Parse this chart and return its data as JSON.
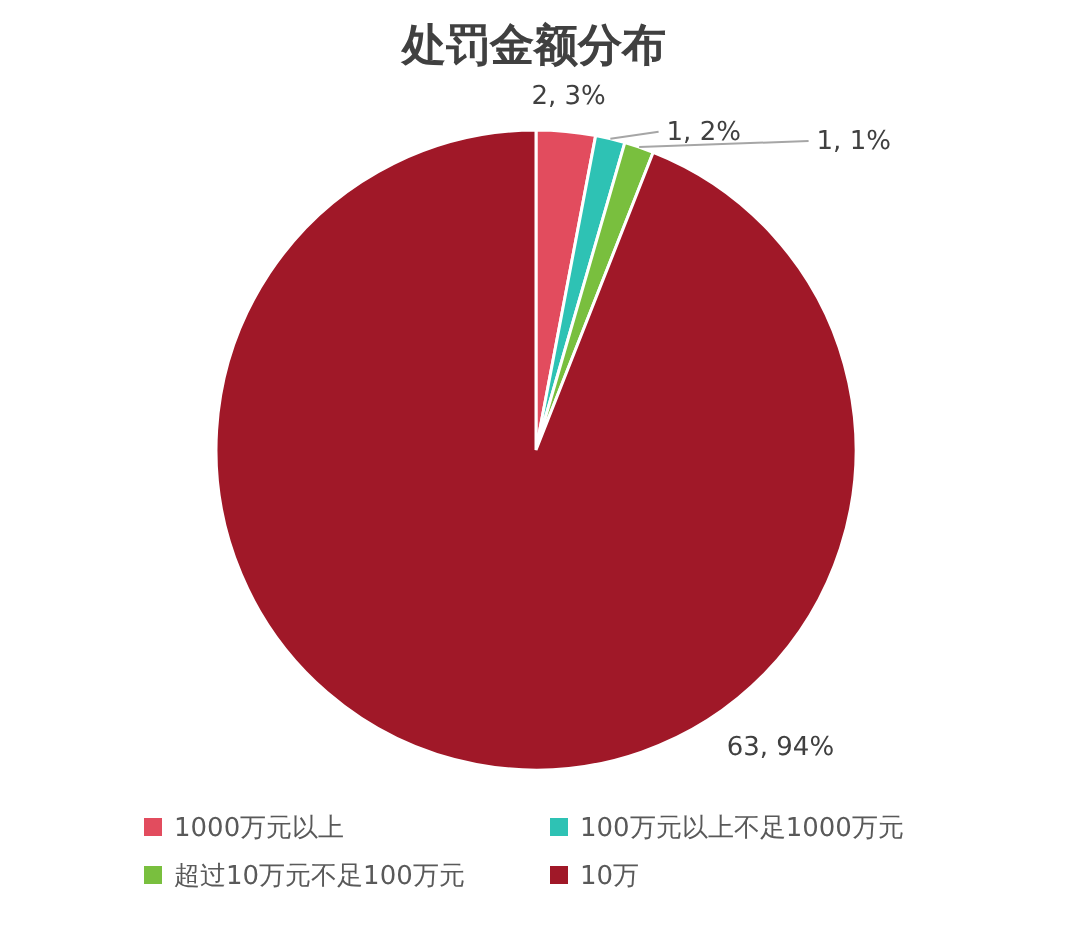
{
  "chart_data": {
    "type": "pie",
    "title": "处罚金额分布",
    "categories": [
      "1000万元以上",
      "100万元以上不足1000万元",
      "超过10万元不足100万元",
      "10万"
    ],
    "values": [
      2,
      1,
      1,
      63
    ],
    "value_labels": [
      "2, 3%",
      "1, 2%",
      "1, 1%",
      "63, 94%"
    ],
    "colors": [
      "#e24c5e",
      "#2ec2b4",
      "#79bf3e",
      "#a01828"
    ],
    "legend": "bottom"
  }
}
